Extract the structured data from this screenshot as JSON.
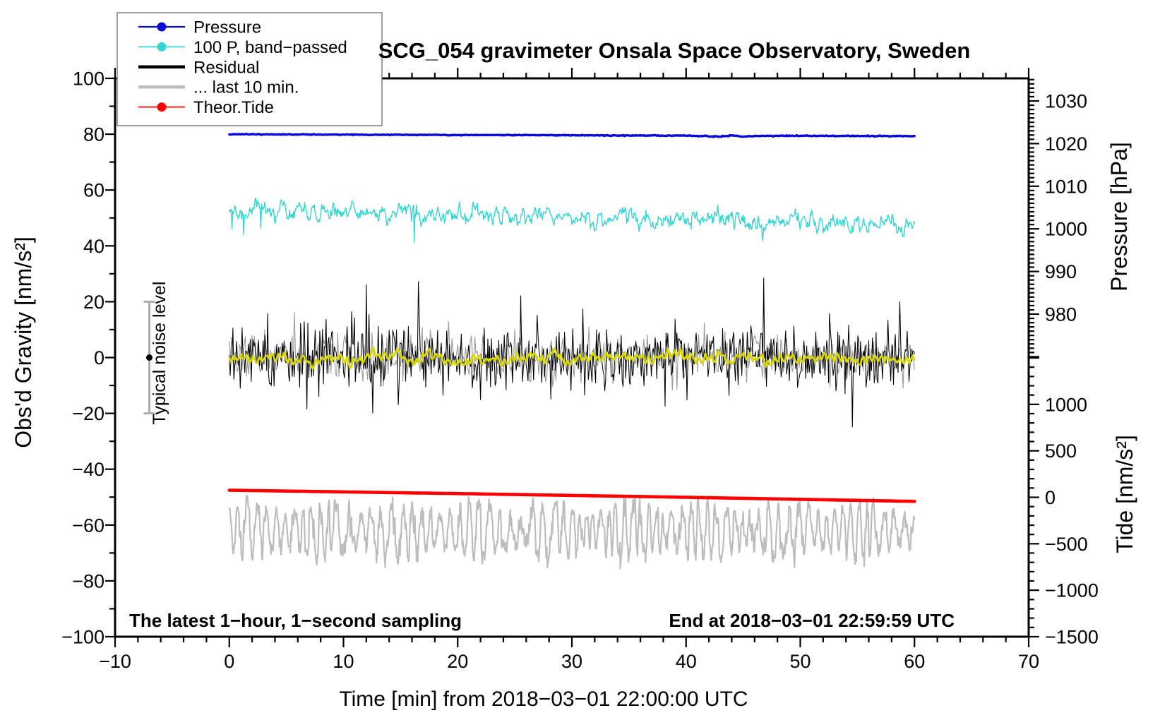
{
  "title": "SCG_054 gravimeter Onsala Space Observatory, Sweden",
  "legend": {
    "items": [
      {
        "label": "Pressure",
        "color": "#0a0ad9",
        "lw": 2.2,
        "marker": true
      },
      {
        "label": "100 P, band−passed",
        "color": "#35d6d2",
        "lw": 1.8,
        "marker": true
      },
      {
        "label": "Residual",
        "color": "#000000",
        "lw": 4.5,
        "marker": false
      },
      {
        "label": "... last 10 min.",
        "color": "#bdbdbd",
        "lw": 4.5,
        "marker": false
      },
      {
        "label": "Theor.Tide",
        "color": "#ff0000",
        "lw": 1.8,
        "marker": true
      }
    ]
  },
  "axes": {
    "x": {
      "title": "Time [min] from 2018−03−01 22:00:00 UTC",
      "min": -10,
      "max": 70,
      "major": 10,
      "minor": 2,
      "ticks": [
        {
          "v": -10,
          "l": "−10"
        },
        {
          "v": 0,
          "l": "0"
        },
        {
          "v": 10,
          "l": "10"
        },
        {
          "v": 20,
          "l": "20"
        },
        {
          "v": 30,
          "l": "30"
        },
        {
          "v": 40,
          "l": "40"
        },
        {
          "v": 50,
          "l": "50"
        },
        {
          "v": 60,
          "l": "60"
        },
        {
          "v": 70,
          "l": "70"
        }
      ]
    },
    "y_left": {
      "title": "Obs'd Gravity [nm/s²]",
      "min": -100,
      "max": 100,
      "major": 20,
      "minor": 10,
      "ticks": [
        {
          "v": 100,
          "l": "100"
        },
        {
          "v": 80,
          "l": "80"
        },
        {
          "v": 60,
          "l": "60"
        },
        {
          "v": 40,
          "l": "40"
        },
        {
          "v": 20,
          "l": "20"
        },
        {
          "v": 0,
          "l": "0"
        },
        {
          "v": -20,
          "l": "−20"
        },
        {
          "v": -40,
          "l": "−40"
        },
        {
          "v": -60,
          "l": "−60"
        },
        {
          "v": -80,
          "l": "−80"
        },
        {
          "v": -100,
          "l": "−100"
        }
      ]
    },
    "pressure": {
      "title": "Pressure [hPa]",
      "minor_from": 1035,
      "minor_to": 970,
      "minor_step": 1,
      "ticks": [
        {
          "v": 1030,
          "l": "1030"
        },
        {
          "v": 1020,
          "l": "1020"
        },
        {
          "v": 1010,
          "l": "1010"
        },
        {
          "v": 1000,
          "l": "1000"
        },
        {
          "v": 990,
          "l": "990"
        },
        {
          "v": 980,
          "l": "980"
        }
      ]
    },
    "tide": {
      "title": "Tide [nm/s²]",
      "minor_from": 1500,
      "minor_to": -1500,
      "minor_step": 100,
      "ticks": [
        {
          "v": 1000,
          "l": "1000"
        },
        {
          "v": 500,
          "l": "500"
        },
        {
          "v": 0,
          "l": "0"
        },
        {
          "v": -500,
          "l": "−500"
        },
        {
          "v": -1000,
          "l": "−1000"
        },
        {
          "v": -1500,
          "l": "−1500"
        }
      ]
    }
  },
  "annotations": {
    "sampling_note": "The latest 1−hour, 1−second sampling",
    "end_note": "End at 2018−03−01 22:59:59 UTC",
    "noise_label": "Typical noise level"
  },
  "chart_data": {
    "type": "line",
    "title": "SCG_054 gravimeter Onsala Space Observatory, Sweden",
    "xlabel": "Time [min] from 2018−03−01 22:00:00 UTC",
    "x_range_min": [
      -10,
      70
    ],
    "data_span_min": [
      0,
      60
    ],
    "y_left_range": [
      -100,
      100
    ],
    "pressure_range_hPa": [
      1030,
      980
    ],
    "tide_range_nms2": [
      1500,
      -1500
    ],
    "grid": false,
    "legend_position": "top-left",
    "noise_marker": {
      "t": -7,
      "value": 0,
      "half_range": 20
    },
    "series": [
      {
        "name": "Pressure",
        "axis": "pressure",
        "color": "#0a0ad9",
        "width": 3.4,
        "anchors": [
          [
            0,
            1022.2
          ],
          [
            5,
            1022.15
          ],
          [
            10,
            1022.1
          ],
          [
            15,
            1022.05
          ],
          [
            20,
            1022.0
          ],
          [
            25,
            1022.0
          ],
          [
            30,
            1021.95
          ],
          [
            35,
            1021.9
          ],
          [
            40,
            1021.85
          ],
          [
            43,
            1021.65
          ],
          [
            44,
            1021.9
          ],
          [
            45,
            1021.6
          ],
          [
            46,
            1021.8
          ],
          [
            48,
            1021.85
          ],
          [
            52,
            1021.8
          ],
          [
            56,
            1021.78
          ],
          [
            60,
            1021.75
          ]
        ],
        "gen": {
          "kind": "anchors",
          "dt": 0.1,
          "sigma": 0.05,
          "seed": 11
        }
      },
      {
        "name": "100 P, band−passed",
        "axis": "gravity",
        "color": "#35d6d2",
        "width": 1.4,
        "anchors": [
          [
            0,
            52.8
          ],
          [
            10,
            51.9
          ],
          [
            20,
            51.0
          ],
          [
            30,
            50.1
          ],
          [
            40,
            49.1
          ],
          [
            50,
            48.1
          ],
          [
            60,
            47.2
          ]
        ],
        "gen": {
          "kind": "ar",
          "dt": 0.06,
          "sigma": 1.15,
          "phi": 0.72,
          "spike_p": 0.012,
          "spike_amp": 5,
          "seed": 22
        }
      },
      {
        "name": "Residual underlay (earlier trace)",
        "axis": "gravity",
        "color": "#9a9a9a",
        "width": 1.1,
        "mean": 0,
        "sigma": 4.2,
        "gen": {
          "kind": "noise",
          "dt": 0.1,
          "mean": 0,
          "sigma": 4.2,
          "spike_p": 0.03,
          "spike_mult": 1.8,
          "spike_p2": 0.004,
          "spike_mult2": 2.6,
          "clamp": 18,
          "seed": 33
        }
      },
      {
        "name": "Residual",
        "axis": "gravity",
        "color": "#000000",
        "width": 1.05,
        "mean": 0,
        "sigma": 5.6,
        "extremes": [
          -28,
          29
        ],
        "gen": {
          "kind": "noise",
          "dt": 0.08,
          "mean": 0,
          "sigma": 5.6,
          "spike_p": 0.045,
          "spike_mult": 2.1,
          "spike_p2": 0.008,
          "spike_mult2": 3.0,
          "clamp": 28.5,
          "seed": 44
        }
      },
      {
        "name": "Residual smoothed",
        "axis": "gravity",
        "color": "#d8d800",
        "width": 2.8,
        "mean": -0.4,
        "amplitude": 1.4,
        "gen": {
          "kind": "smooth",
          "dt": 0.08,
          "mean": -0.4,
          "sigma": 0.5,
          "phi": 0.85,
          "wamp": 0.9,
          "wper": 0.55,
          "seed": 55
        }
      },
      {
        "name": "... last 10 min.",
        "axis": "gravity",
        "color": "#bdbdbd",
        "width": 2.2,
        "mean": -62,
        "amplitude": 8.2,
        "range": [
          -78.5,
          -45.8
        ],
        "gen": {
          "kind": "osc",
          "dt": 0.05,
          "mean": -62,
          "amp": 8.2,
          "per": 0.82,
          "sigma": 1.6,
          "clampLo": -78.5,
          "clampHi": -45.8,
          "seed": 66
        }
      },
      {
        "name": "Theor.Tide",
        "axis": "tide",
        "color": "#ff0000",
        "width": 4.6,
        "anchors": [
          [
            0,
            76
          ],
          [
            10,
            58
          ],
          [
            20,
            40
          ],
          [
            30,
            20
          ],
          [
            40,
            0
          ],
          [
            50,
            -22
          ],
          [
            60,
            -44
          ]
        ],
        "gen": {
          "kind": "anchors",
          "dt": 0.5,
          "sigma": 0,
          "seed": 77
        }
      }
    ]
  }
}
